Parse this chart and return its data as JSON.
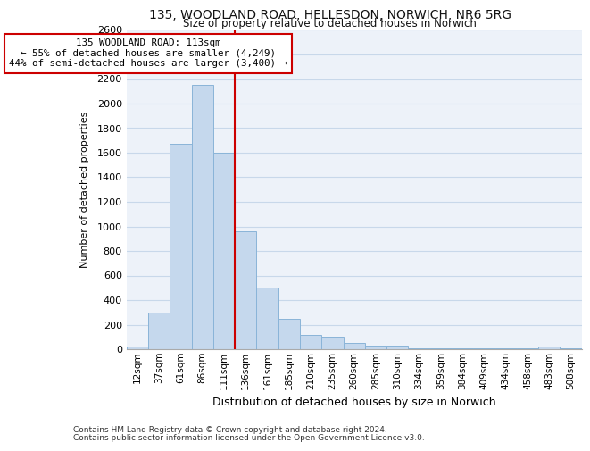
{
  "title_line1": "135, WOODLAND ROAD, HELLESDON, NORWICH, NR6 5RG",
  "title_line2": "Size of property relative to detached houses in Norwich",
  "xlabel": "Distribution of detached houses by size in Norwich",
  "ylabel": "Number of detached properties",
  "footnote1": "Contains HM Land Registry data © Crown copyright and database right 2024.",
  "footnote2": "Contains public sector information licensed under the Open Government Licence v3.0.",
  "bar_labels": [
    "12sqm",
    "37sqm",
    "61sqm",
    "86sqm",
    "111sqm",
    "136sqm",
    "161sqm",
    "185sqm",
    "210sqm",
    "235sqm",
    "260sqm",
    "285sqm",
    "310sqm",
    "334sqm",
    "359sqm",
    "384sqm",
    "409sqm",
    "434sqm",
    "458sqm",
    "483sqm",
    "508sqm"
  ],
  "bar_values": [
    25,
    300,
    1670,
    2150,
    1600,
    960,
    500,
    250,
    120,
    100,
    50,
    30,
    30,
    5,
    5,
    5,
    5,
    5,
    5,
    20,
    5
  ],
  "bar_color": "#c5d8ed",
  "bar_edgecolor": "#8ab4d8",
  "vline_x_index": 4,
  "vline_color": "#cc0000",
  "annotation_text": "135 WOODLAND ROAD: 113sqm\n← 55% of detached houses are smaller (4,249)\n44% of semi-detached houses are larger (3,400) →",
  "annotation_box_edgecolor": "#cc0000",
  "ylim": [
    0,
    2600
  ],
  "yticks": [
    0,
    200,
    400,
    600,
    800,
    1000,
    1200,
    1400,
    1600,
    1800,
    2000,
    2200,
    2400,
    2600
  ],
  "grid_color": "#c8d8ea",
  "bg_color": "#ffffff",
  "axes_bg_color": "#edf2f9"
}
